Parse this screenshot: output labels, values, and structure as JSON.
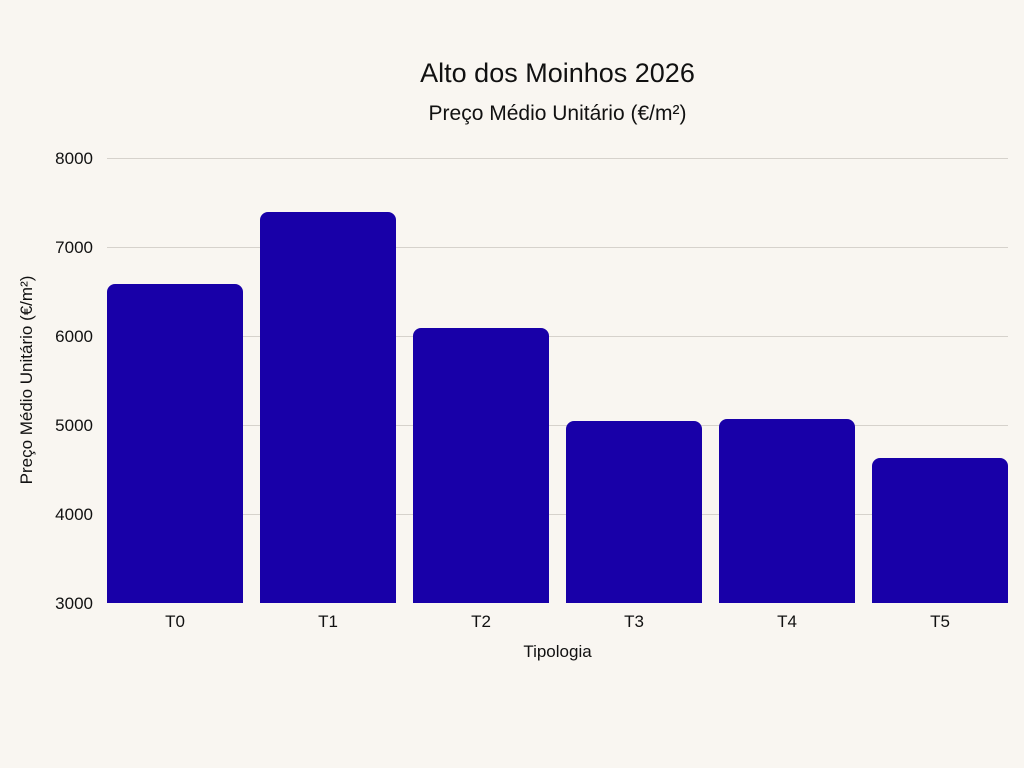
{
  "chart_data": {
    "type": "bar",
    "title": "Alto dos Moinhos 2026",
    "subtitle": "Preço Médio Unitário (€/m²)",
    "xlabel": "Tipologia",
    "ylabel": "Preço Médio Unitário (€/m²)",
    "categories": [
      "T0",
      "T1",
      "T2",
      "T3",
      "T4",
      "T5"
    ],
    "values": [
      6590,
      7390,
      6090,
      5045,
      5065,
      4635
    ],
    "ylim": [
      3000,
      8000
    ],
    "yticks": [
      3000,
      4000,
      5000,
      6000,
      7000,
      8000
    ],
    "grid": true,
    "legend": null,
    "bar_color": "#1800a8",
    "background_color": "#f9f6f1"
  }
}
